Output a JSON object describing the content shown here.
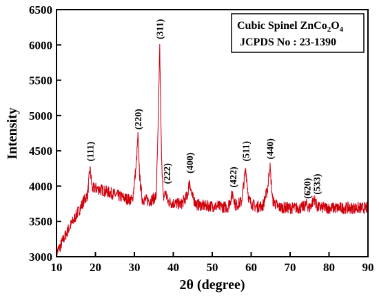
{
  "chart_data": {
    "type": "line",
    "xlabel": "2θ (degree)",
    "ylabel": "Intensity",
    "xlim": [
      10,
      90
    ],
    "ylim": [
      3000,
      6500
    ],
    "xticks": [
      10,
      20,
      30,
      40,
      50,
      60,
      70,
      80,
      90
    ],
    "yticks": [
      3000,
      3500,
      4000,
      4500,
      5000,
      5500,
      6000,
      6500
    ],
    "grid": false,
    "legend": {
      "placement": "top-right",
      "line1_prefix": "Cubic Spinel ZnCo",
      "line1_sub1": "2",
      "line1_mid": "O",
      "line1_sub2": "4",
      "line2": "JCPDS No : 23-1390"
    },
    "series": [
      {
        "color": "#cc0000",
        "noise_color": "#ff66cc",
        "points": [
          [
            10,
            3050
          ],
          [
            11,
            3150
          ],
          [
            12,
            3270
          ],
          [
            13,
            3380
          ],
          [
            14,
            3480
          ],
          [
            15,
            3580
          ],
          [
            16,
            3680
          ],
          [
            17,
            3790
          ],
          [
            18,
            3880
          ],
          [
            18.6,
            4250
          ],
          [
            19.2,
            3960
          ],
          [
            20,
            3970
          ],
          [
            22,
            3940
          ],
          [
            24,
            3900
          ],
          [
            26,
            3860
          ],
          [
            28,
            3820
          ],
          [
            29.5,
            3800
          ],
          [
            30.5,
            4300
          ],
          [
            30.9,
            4720
          ],
          [
            31.4,
            4100
          ],
          [
            32,
            3820
          ],
          [
            34,
            3790
          ],
          [
            35.6,
            3850
          ],
          [
            36.1,
            4800
          ],
          [
            36.5,
            6000
          ],
          [
            36.9,
            4600
          ],
          [
            37.4,
            3820
          ],
          [
            38,
            3920
          ],
          [
            38.6,
            3780
          ],
          [
            40,
            3760
          ],
          [
            42,
            3740
          ],
          [
            43.6,
            3860
          ],
          [
            44.2,
            4080
          ],
          [
            44.8,
            3850
          ],
          [
            46,
            3740
          ],
          [
            48,
            3720
          ],
          [
            50,
            3720
          ],
          [
            52,
            3710
          ],
          [
            54,
            3700
          ],
          [
            55.3,
            3900
          ],
          [
            56,
            3720
          ],
          [
            57.5,
            3780
          ],
          [
            58.6,
            4250
          ],
          [
            59.4,
            3800
          ],
          [
            61,
            3710
          ],
          [
            63,
            3720
          ],
          [
            64.2,
            3950
          ],
          [
            64.8,
            4300
          ],
          [
            65.5,
            3800
          ],
          [
            67,
            3700
          ],
          [
            70,
            3690
          ],
          [
            73,
            3690
          ],
          [
            74.2,
            3740
          ],
          [
            75,
            3690
          ],
          [
            76.2,
            3820
          ],
          [
            77,
            3700
          ],
          [
            80,
            3690
          ],
          [
            85,
            3690
          ],
          [
            90,
            3690
          ]
        ]
      }
    ],
    "annotations": [
      {
        "text": "(111)",
        "x": 18.6,
        "y": 4350
      },
      {
        "text": "(220)",
        "x": 30.9,
        "y": 4800
      },
      {
        "text": "(311)",
        "x": 36.5,
        "y": 6080
      },
      {
        "text": "(222)",
        "x": 38.3,
        "y": 4030
      },
      {
        "text": "(400)",
        "x": 44.2,
        "y": 4180
      },
      {
        "text": "(422)",
        "x": 55.3,
        "y": 3980
      },
      {
        "text": "(511)",
        "x": 58.6,
        "y": 4350
      },
      {
        "text": "(440)",
        "x": 64.8,
        "y": 4380
      },
      {
        "text": "(620)",
        "x": 74.3,
        "y": 3820
      },
      {
        "text": "(533)",
        "x": 76.8,
        "y": 3880
      }
    ]
  }
}
